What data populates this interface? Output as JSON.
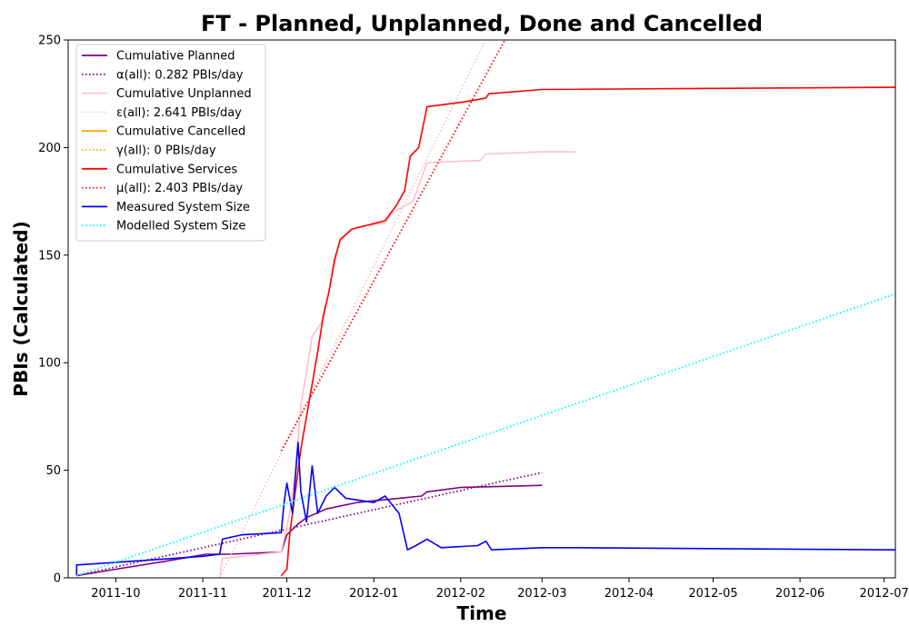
{
  "chart_data": {
    "type": "line",
    "title": "FT - Planned, Unplanned, Done  and Cancelled",
    "xlabel": "Time",
    "ylabel": "PBIs (Calculated)",
    "ylim": [
      0,
      250
    ],
    "yticks": [
      0,
      50,
      100,
      150,
      200,
      250
    ],
    "xlim": [
      "2011-09-14",
      "2012-07-05"
    ],
    "xticks": [
      "2011-10",
      "2011-11",
      "2011-12",
      "2012-01",
      "2012-02",
      "2012-03",
      "2012-04",
      "2012-05",
      "2012-06",
      "2012-07"
    ],
    "grid": false,
    "legend_position": "top-left",
    "series": [
      {
        "name": "Cumulative Planned",
        "color": "#800080",
        "style": "solid",
        "points": [
          [
            "2011-09-17",
            1
          ],
          [
            "2011-10-01",
            4
          ],
          [
            "2011-10-20",
            8
          ],
          [
            "2011-11-02",
            11
          ],
          [
            "2011-11-10",
            11
          ],
          [
            "2011-11-29",
            12
          ],
          [
            "2011-12-01",
            20
          ],
          [
            "2011-12-05",
            25
          ],
          [
            "2011-12-08",
            28
          ],
          [
            "2011-12-15",
            32
          ],
          [
            "2011-12-26",
            35
          ],
          [
            "2012-01-10",
            37
          ],
          [
            "2012-01-18",
            38
          ],
          [
            "2012-01-20",
            40
          ],
          [
            "2012-02-01",
            42
          ],
          [
            "2012-02-15",
            42.5
          ],
          [
            "2012-03-01",
            43
          ]
        ]
      },
      {
        "name": "α(all): 0.282 PBIs/day",
        "color": "#800080",
        "style": "dotted",
        "points": [
          [
            "2011-09-17",
            1
          ],
          [
            "2012-03-01",
            49
          ]
        ]
      },
      {
        "name": "Cumulative Unplanned",
        "color": "#ffc0cb",
        "style": "solid",
        "points": [
          [
            "2011-11-07",
            0
          ],
          [
            "2011-11-08",
            9
          ],
          [
            "2011-11-15",
            10
          ],
          [
            "2011-11-29",
            12
          ],
          [
            "2011-12-02",
            30
          ],
          [
            "2011-12-04",
            50
          ],
          [
            "2011-12-06",
            80
          ],
          [
            "2011-12-10",
            112
          ],
          [
            "2011-12-14",
            120
          ],
          [
            "2011-12-17",
            140
          ],
          [
            "2011-12-20",
            158
          ],
          [
            "2011-12-26",
            163
          ],
          [
            "2012-01-05",
            165
          ],
          [
            "2012-01-08",
            170
          ],
          [
            "2012-01-15",
            175
          ],
          [
            "2012-01-20",
            193
          ],
          [
            "2012-02-08",
            194
          ],
          [
            "2012-02-10",
            197
          ],
          [
            "2012-03-01",
            198
          ],
          [
            "2012-03-13",
            198
          ]
        ]
      },
      {
        "name": "ε(all): 2.641 PBIs/day",
        "color": "#ffc0cb",
        "style": "dotted",
        "points": [
          [
            "2011-11-07",
            0
          ],
          [
            "2012-02-11",
            253
          ]
        ]
      },
      {
        "name": "Cumulative Cancelled",
        "color": "#ffa500",
        "style": "solid",
        "points": []
      },
      {
        "name": "γ(all): 0 PBIs/day",
        "color": "#ffa500",
        "style": "dotted",
        "points": []
      },
      {
        "name": "Cumulative Services",
        "color": "#ff0000",
        "style": "solid",
        "points": [
          [
            "2011-11-29",
            1
          ],
          [
            "2011-12-01",
            4
          ],
          [
            "2011-12-02",
            20
          ],
          [
            "2011-12-04",
            40
          ],
          [
            "2011-12-06",
            60
          ],
          [
            "2011-12-08",
            75
          ],
          [
            "2011-12-10",
            90
          ],
          [
            "2011-12-12",
            105
          ],
          [
            "2011-12-14",
            122
          ],
          [
            "2011-12-16",
            133
          ],
          [
            "2011-12-18",
            148
          ],
          [
            "2011-12-20",
            157
          ],
          [
            "2011-12-24",
            162
          ],
          [
            "2012-01-05",
            166
          ],
          [
            "2012-01-09",
            173
          ],
          [
            "2012-01-12",
            180
          ],
          [
            "2012-01-14",
            196
          ],
          [
            "2012-01-17",
            200
          ],
          [
            "2012-01-20",
            219
          ],
          [
            "2012-02-01",
            221
          ],
          [
            "2012-02-10",
            223
          ],
          [
            "2012-02-11",
            225
          ],
          [
            "2012-03-01",
            227
          ],
          [
            "2012-07-05",
            228
          ]
        ]
      },
      {
        "name": "μ(all): 2.403 PBIs/day",
        "color": "#ff0000",
        "style": "dotted",
        "points": [
          [
            "2011-11-29",
            59
          ],
          [
            "2012-02-18",
            253
          ]
        ]
      },
      {
        "name": "Measured System Size",
        "color": "#0000ff",
        "style": "solid",
        "points": [
          [
            "2011-09-17",
            1
          ],
          [
            "2011-09-17",
            6
          ],
          [
            "2011-10-10",
            8
          ],
          [
            "2011-11-01",
            10
          ],
          [
            "2011-11-07",
            11
          ],
          [
            "2011-11-08",
            18
          ],
          [
            "2011-11-15",
            20
          ],
          [
            "2011-11-29",
            21
          ],
          [
            "2011-11-30",
            35
          ],
          [
            "2011-12-01",
            44
          ],
          [
            "2011-12-03",
            30
          ],
          [
            "2011-12-05",
            63
          ],
          [
            "2011-12-06",
            40
          ],
          [
            "2011-12-08",
            26
          ],
          [
            "2011-12-10",
            52
          ],
          [
            "2011-12-12",
            30
          ],
          [
            "2011-12-15",
            38
          ],
          [
            "2011-12-18",
            42
          ],
          [
            "2011-12-22",
            37
          ],
          [
            "2012-01-01",
            35
          ],
          [
            "2012-01-05",
            38
          ],
          [
            "2012-01-10",
            30
          ],
          [
            "2012-01-13",
            13
          ],
          [
            "2012-01-16",
            15
          ],
          [
            "2012-01-20",
            18
          ],
          [
            "2012-01-25",
            14
          ],
          [
            "2012-02-07",
            15
          ],
          [
            "2012-02-10",
            17
          ],
          [
            "2012-02-12",
            13
          ],
          [
            "2012-03-01",
            14
          ],
          [
            "2012-03-12",
            14
          ],
          [
            "2012-07-05",
            13
          ]
        ]
      },
      {
        "name": "Modelled System Size",
        "color": "#00ffff",
        "style": "dotted",
        "points": [
          [
            "2011-09-17",
            1
          ],
          [
            "2012-07-05",
            132
          ]
        ]
      }
    ]
  }
}
